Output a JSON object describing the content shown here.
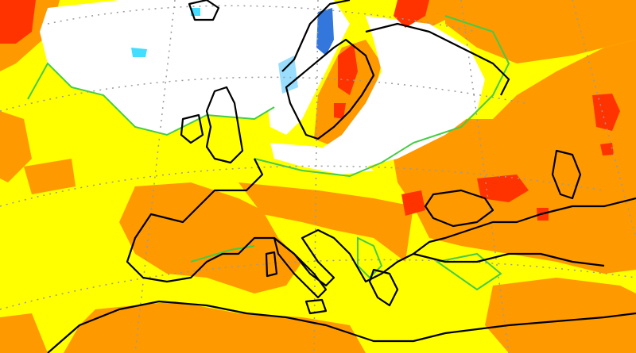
{
  "map": {
    "type": "anomaly-map",
    "region": "Europe",
    "projection": "polar-stereographic",
    "palette": {
      "white": "#ffffff",
      "yellow": "#ffff00",
      "light_green": "#66dd44",
      "orange": "#ff9900",
      "red": "#ff3300",
      "light_blue": "#99ddff",
      "blue": "#3377dd",
      "coastline": "#000000",
      "graticule": "#999999"
    },
    "categories_shown": [
      "white",
      "yellow",
      "orange",
      "red",
      "light_blue",
      "blue"
    ],
    "legend": null,
    "title": null
  }
}
